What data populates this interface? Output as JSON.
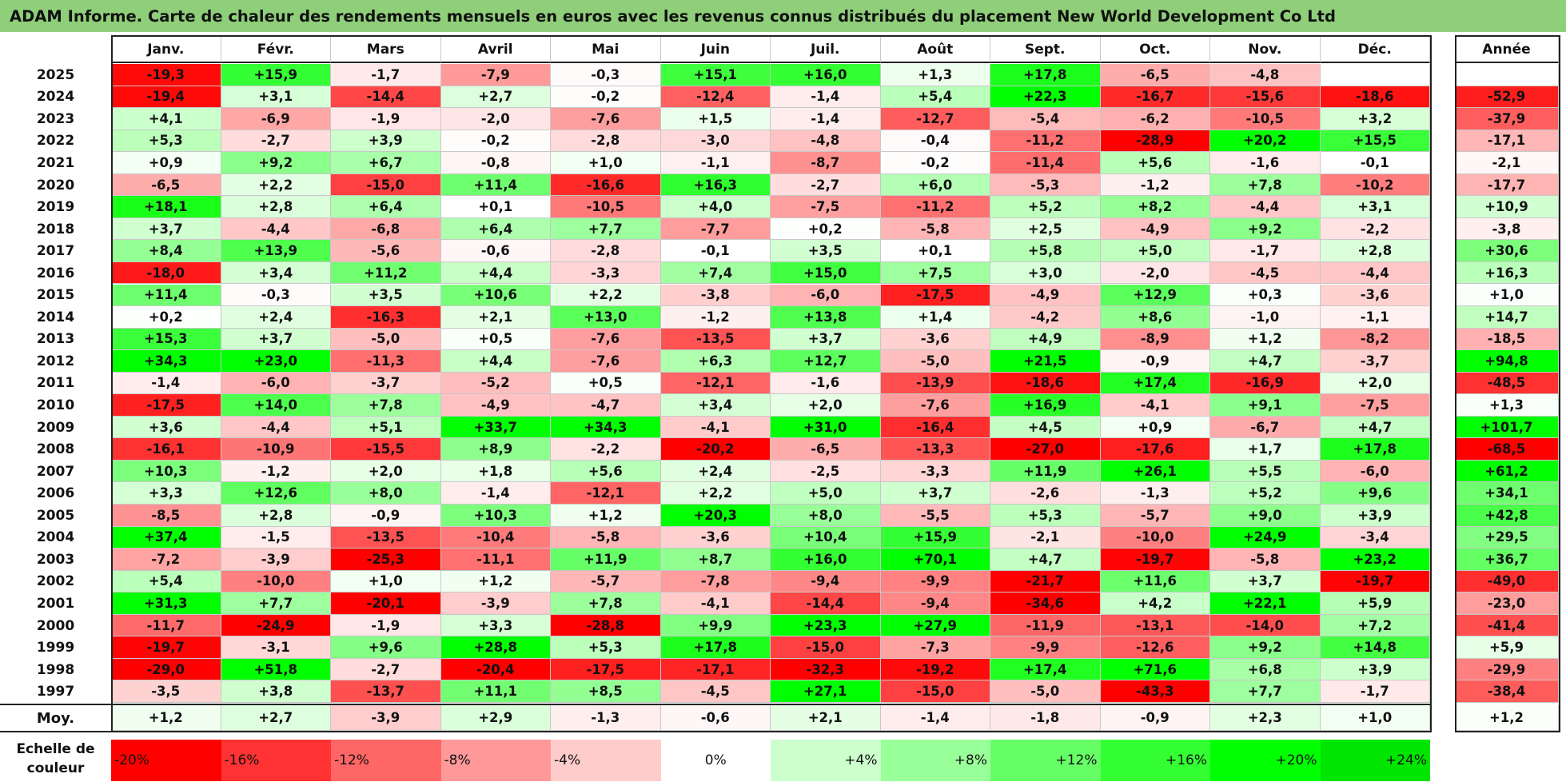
{
  "title": "ADAM Informe. Carte de chaleur des rendements mensuels en euros avec les revenus connus distribués du placement New World Development Co Ltd",
  "chart_data": {
    "type": "heatmap",
    "columns": [
      "Janv.",
      "Févr.",
      "Mars",
      "Avril",
      "Mai",
      "Juin",
      "Juil.",
      "Août",
      "Sept.",
      "Oct.",
      "Nov.",
      "Déc."
    ],
    "year_column": "Année",
    "rows": [
      {
        "year": "2025",
        "months": [
          "-19,3",
          "+15,9",
          "-1,7",
          "-7,9",
          "-0,3",
          "+15,1",
          "+16,0",
          "+1,3",
          "+17,8",
          "-6,5",
          "-4,8",
          ""
        ],
        "annual": ""
      },
      {
        "year": "2024",
        "months": [
          "-19,4",
          "+3,1",
          "-14,4",
          "+2,7",
          "-0,2",
          "-12,4",
          "-1,4",
          "+5,4",
          "+22,3",
          "-16,7",
          "-15,6",
          "-18,6"
        ],
        "annual": "-52,9"
      },
      {
        "year": "2023",
        "months": [
          "+4,1",
          "-6,9",
          "-1,9",
          "-2,0",
          "-7,6",
          "+1,5",
          "-1,4",
          "-12,7",
          "-5,4",
          "-6,2",
          "-10,5",
          "+3,2"
        ],
        "annual": "-37,9"
      },
      {
        "year": "2022",
        "months": [
          "+5,3",
          "-2,7",
          "+3,9",
          "-0,2",
          "-2,8",
          "-3,0",
          "-4,8",
          "-0,4",
          "-11,2",
          "-28,9",
          "+20,2",
          "+15,5"
        ],
        "annual": "-17,1"
      },
      {
        "year": "2021",
        "months": [
          "+0,9",
          "+9,2",
          "+6,7",
          "-0,8",
          "+1,0",
          "-1,1",
          "-8,7",
          "-0,2",
          "-11,4",
          "+5,6",
          "-1,6",
          "-0,1"
        ],
        "annual": "-2,1"
      },
      {
        "year": "2020",
        "months": [
          "-6,5",
          "+2,2",
          "-15,0",
          "+11,4",
          "-16,6",
          "+16,3",
          "-2,7",
          "+6,0",
          "-5,3",
          "-1,2",
          "+7,8",
          "-10,2"
        ],
        "annual": "-17,7"
      },
      {
        "year": "2019",
        "months": [
          "+18,1",
          "+2,8",
          "+6,4",
          "+0,1",
          "-10,5",
          "+4,0",
          "-7,5",
          "-11,2",
          "+5,2",
          "+8,2",
          "-4,4",
          "+3,1"
        ],
        "annual": "+10,9"
      },
      {
        "year": "2018",
        "months": [
          "+3,7",
          "-4,4",
          "-6,8",
          "+6,4",
          "+7,7",
          "-7,7",
          "+0,2",
          "-5,8",
          "+2,5",
          "-4,9",
          "+9,2",
          "-2,2"
        ],
        "annual": "-3,8"
      },
      {
        "year": "2017",
        "months": [
          "+8,4",
          "+13,9",
          "-5,6",
          "-0,6",
          "-2,8",
          "-0,1",
          "+3,5",
          "+0,1",
          "+5,8",
          "+5,0",
          "-1,7",
          "+2,8"
        ],
        "annual": "+30,6"
      },
      {
        "year": "2016",
        "months": [
          "-18,0",
          "+3,4",
          "+11,2",
          "+4,4",
          "-3,3",
          "+7,4",
          "+15,0",
          "+7,5",
          "+3,0",
          "-2,0",
          "-4,5",
          "-4,4"
        ],
        "annual": "+16,3"
      },
      {
        "year": "2015",
        "months": [
          "+11,4",
          "-0,3",
          "+3,5",
          "+10,6",
          "+2,2",
          "-3,8",
          "-6,0",
          "-17,5",
          "-4,9",
          "+12,9",
          "+0,3",
          "-3,6"
        ],
        "annual": "+1,0"
      },
      {
        "year": "2014",
        "months": [
          "+0,2",
          "+2,4",
          "-16,3",
          "+2,1",
          "+13,0",
          "-1,2",
          "+13,8",
          "+1,4",
          "-4,2",
          "+8,6",
          "-1,0",
          "-1,1"
        ],
        "annual": "+14,7"
      },
      {
        "year": "2013",
        "months": [
          "+15,3",
          "+3,7",
          "-5,0",
          "+0,5",
          "-7,6",
          "-13,5",
          "+3,7",
          "-3,6",
          "+4,9",
          "-8,9",
          "+1,2",
          "-8,2"
        ],
        "annual": "-18,5"
      },
      {
        "year": "2012",
        "months": [
          "+34,3",
          "+23,0",
          "-11,3",
          "+4,4",
          "-7,6",
          "+6,3",
          "+12,7",
          "-5,0",
          "+21,5",
          "-0,9",
          "+4,7",
          "-3,7"
        ],
        "annual": "+94,8"
      },
      {
        "year": "2011",
        "months": [
          "-1,4",
          "-6,0",
          "-3,7",
          "-5,2",
          "+0,5",
          "-12,1",
          "-1,6",
          "-13,9",
          "-18,6",
          "+17,4",
          "-16,9",
          "+2,0"
        ],
        "annual": "-48,5"
      },
      {
        "year": "2010",
        "months": [
          "-17,5",
          "+14,0",
          "+7,8",
          "-4,9",
          "-4,7",
          "+3,4",
          "+2,0",
          "-7,6",
          "+16,9",
          "-4,1",
          "+9,1",
          "-7,5"
        ],
        "annual": "+1,3"
      },
      {
        "year": "2009",
        "months": [
          "+3,6",
          "-4,4",
          "+5,1",
          "+33,7",
          "+34,3",
          "-4,1",
          "+31,0",
          "-16,4",
          "+4,5",
          "+0,9",
          "-6,7",
          "+4,7"
        ],
        "annual": "+101,7"
      },
      {
        "year": "2008",
        "months": [
          "-16,1",
          "-10,9",
          "-15,5",
          "+8,9",
          "-2,2",
          "-20,2",
          "-6,5",
          "-13,3",
          "-27,0",
          "-17,6",
          "+1,7",
          "+17,8"
        ],
        "annual": "-68,5"
      },
      {
        "year": "2007",
        "months": [
          "+10,3",
          "-1,2",
          "+2,0",
          "+1,8",
          "+5,6",
          "+2,4",
          "-2,5",
          "-3,3",
          "+11,9",
          "+26,1",
          "+5,5",
          "-6,0"
        ],
        "annual": "+61,2"
      },
      {
        "year": "2006",
        "months": [
          "+3,3",
          "+12,6",
          "+8,0",
          "-1,4",
          "-12,1",
          "+2,2",
          "+5,0",
          "+3,7",
          "-2,6",
          "-1,3",
          "+5,2",
          "+9,6"
        ],
        "annual": "+34,1"
      },
      {
        "year": "2005",
        "months": [
          "-8,5",
          "+2,8",
          "-0,9",
          "+10,3",
          "+1,2",
          "+20,3",
          "+8,0",
          "-5,5",
          "+5,3",
          "-5,7",
          "+9,0",
          "+3,9"
        ],
        "annual": "+42,8"
      },
      {
        "year": "2004",
        "months": [
          "+37,4",
          "-1,5",
          "-13,5",
          "-10,4",
          "-5,8",
          "-3,6",
          "+10,4",
          "+15,9",
          "-2,1",
          "-10,0",
          "+24,9",
          "-3,4"
        ],
        "annual": "+29,5"
      },
      {
        "year": "2003",
        "months": [
          "-7,2",
          "-3,9",
          "-25,3",
          "-11,1",
          "+11,9",
          "+8,7",
          "+16,0",
          "+70,1",
          "+4,7",
          "-19,7",
          "-5,8",
          "+23,2"
        ],
        "annual": "+36,7"
      },
      {
        "year": "2002",
        "months": [
          "+5,4",
          "-10,0",
          "+1,0",
          "+1,2",
          "-5,7",
          "-7,8",
          "-9,4",
          "-9,9",
          "-21,7",
          "+11,6",
          "+3,7",
          "-19,7"
        ],
        "annual": "-49,0"
      },
      {
        "year": "2001",
        "months": [
          "+31,3",
          "+7,7",
          "-20,1",
          "-3,9",
          "+7,8",
          "-4,1",
          "-14,4",
          "-9,4",
          "-34,6",
          "+4,2",
          "+22,1",
          "+5,9"
        ],
        "annual": "-23,0"
      },
      {
        "year": "2000",
        "months": [
          "-11,7",
          "-24,9",
          "-1,9",
          "+3,3",
          "-28,8",
          "+9,9",
          "+23,3",
          "+27,9",
          "-11,9",
          "-13,1",
          "-14,0",
          "+7,2"
        ],
        "annual": "-41,4"
      },
      {
        "year": "1999",
        "months": [
          "-19,7",
          "-3,1",
          "+9,6",
          "+28,8",
          "+5,3",
          "+17,8",
          "-15,0",
          "-7,3",
          "-9,9",
          "-12,6",
          "+9,2",
          "+14,8"
        ],
        "annual": "+5,9"
      },
      {
        "year": "1998",
        "months": [
          "-29,0",
          "+51,8",
          "-2,7",
          "-20,4",
          "-17,5",
          "-17,1",
          "-32,3",
          "-19,2",
          "+17,4",
          "+71,6",
          "+6,8",
          "+3,9"
        ],
        "annual": "-29,9"
      },
      {
        "year": "1997",
        "months": [
          "-3,5",
          "+3,8",
          "-13,7",
          "+11,1",
          "+8,5",
          "-4,5",
          "+27,1",
          "-15,0",
          "-5,0",
          "-43,3",
          "+7,7",
          "-1,7"
        ],
        "annual": "-38,4"
      }
    ],
    "average": {
      "label": "Moy.",
      "months": [
        "+1,2",
        "+2,7",
        "-3,9",
        "+2,9",
        "-1,3",
        "-0,6",
        "+2,1",
        "-1,4",
        "-1,8",
        "-0,9",
        "+2,3",
        "+1,0"
      ],
      "annual": "+1,2"
    },
    "color_scale": {
      "label": "Echelle de couleur",
      "stops": [
        "-20%",
        "-16%",
        "-12%",
        "-8%",
        "-4%",
        "0%",
        "+4%",
        "+8%",
        "+12%",
        "+16%",
        "+20%",
        "+24%"
      ],
      "colors": [
        "#ff0000",
        "#ff3333",
        "#ff6666",
        "#ff9999",
        "#ffcccc",
        "#ffffff",
        "#ccffcc",
        "#99ff99",
        "#66ff66",
        "#33ff33",
        "#00ff00",
        "#00e600"
      ]
    }
  }
}
